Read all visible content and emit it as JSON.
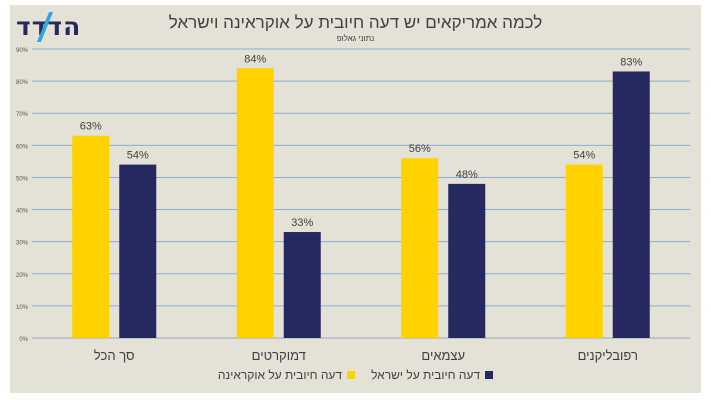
{
  "logo": {
    "text": "הדדד"
  },
  "colors": {
    "ukraine": "#ffd200",
    "israel": "#26295f",
    "grid": "#8aaed1",
    "background": "#e4e1d6"
  },
  "chart_data": {
    "type": "bar",
    "title": "לכמה אמריקאים יש דעה חיובית על אוקראינה וישראל",
    "subtitle": "נתוני גאלופ",
    "categories": [
      "סך הכל",
      "דמוקרטים",
      "עצמאים",
      "רפובליקנים"
    ],
    "series": [
      {
        "name": "דעה חיובית על אוקראינה",
        "values": [
          63,
          84,
          56,
          54
        ],
        "labels": [
          "63%",
          "84%",
          "56%",
          "54%"
        ]
      },
      {
        "name": "דעה חיובית על ישראל",
        "values": [
          54,
          33,
          48,
          83
        ],
        "labels": [
          "54%",
          "33%",
          "48%",
          "83%"
        ]
      }
    ],
    "ylim": [
      0,
      90
    ],
    "yticks": [
      0,
      10,
      20,
      30,
      40,
      50,
      60,
      70,
      80,
      90
    ],
    "ytick_labels": [
      "0%",
      "10%",
      "20%",
      "30%",
      "40%",
      "50%",
      "60%",
      "70%",
      "80%",
      "90%"
    ],
    "grid": true,
    "legend": "bottom"
  }
}
